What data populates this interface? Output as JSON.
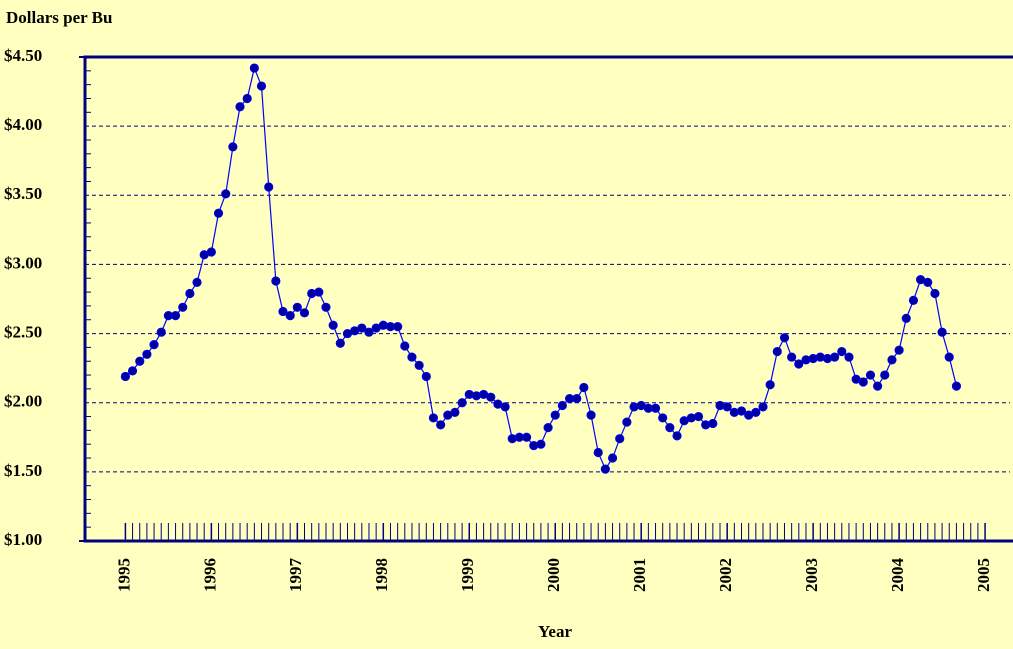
{
  "chart_data": {
    "type": "line",
    "y_axis_title": "Dollars per Bu",
    "x_axis_title": "Year",
    "xlim": [
      1994.53,
      2005.29
    ],
    "xticks": [
      1995,
      1996,
      1997,
      1998,
      1999,
      2000,
      2001,
      2002,
      2003,
      2004,
      2005
    ],
    "ylim": [
      1.0,
      4.5
    ],
    "yticks": [
      {
        "value": 1.0,
        "label": "$1.00"
      },
      {
        "value": 1.5,
        "label": "$1.50"
      },
      {
        "value": 2.0,
        "label": "$2.00"
      },
      {
        "value": 2.5,
        "label": "$2.50"
      },
      {
        "value": 3.0,
        "label": "$3.00"
      },
      {
        "value": 3.5,
        "label": "$3.50"
      },
      {
        "value": 4.0,
        "label": "$4.00"
      },
      {
        "value": 4.5,
        "label": "$4.50"
      }
    ],
    "grid": true,
    "x": [
      1995.0,
      1995.083,
      1995.167,
      1995.25,
      1995.333,
      1995.417,
      1995.5,
      1995.583,
      1995.667,
      1995.75,
      1995.833,
      1995.917,
      1996.0,
      1996.083,
      1996.167,
      1996.25,
      1996.333,
      1996.417,
      1996.5,
      1996.583,
      1996.667,
      1996.75,
      1996.833,
      1996.917,
      1997.0,
      1997.083,
      1997.167,
      1997.25,
      1997.333,
      1997.417,
      1997.5,
      1997.583,
      1997.667,
      1997.75,
      1997.833,
      1997.917,
      1998.0,
      1998.083,
      1998.167,
      1998.25,
      1998.333,
      1998.417,
      1998.5,
      1998.583,
      1998.667,
      1998.75,
      1998.833,
      1998.917,
      1999.0,
      1999.083,
      1999.167,
      1999.25,
      1999.333,
      1999.417,
      1999.5,
      1999.583,
      1999.667,
      1999.75,
      1999.833,
      1999.917,
      2000.0,
      2000.083,
      2000.167,
      2000.25,
      2000.333,
      2000.417,
      2000.5,
      2000.583,
      2000.667,
      2000.75,
      2000.833,
      2000.917,
      2001.0,
      2001.083,
      2001.167,
      2001.25,
      2001.333,
      2001.417,
      2001.5,
      2001.583,
      2001.667,
      2001.75,
      2001.833,
      2001.917,
      2002.0,
      2002.083,
      2002.167,
      2002.25,
      2002.333,
      2002.417,
      2002.5,
      2002.583,
      2002.667,
      2002.75,
      2002.833,
      2002.917,
      2003.0,
      2003.083,
      2003.167,
      2003.25,
      2003.333,
      2003.417,
      2003.5,
      2003.583,
      2003.667,
      2003.75,
      2003.833,
      2003.917,
      2004.0,
      2004.083,
      2004.167,
      2004.25,
      2004.333,
      2004.417,
      2004.5,
      2004.583,
      2004.667
    ],
    "series": [
      {
        "color": "#0000ff",
        "marker_color": "#0000a0",
        "values": [
          2.19,
          2.23,
          2.3,
          2.35,
          2.42,
          2.51,
          2.63,
          2.63,
          2.69,
          2.79,
          2.87,
          3.07,
          3.09,
          3.37,
          3.51,
          3.85,
          4.14,
          4.2,
          4.42,
          4.29,
          3.56,
          2.88,
          2.66,
          2.63,
          2.69,
          2.65,
          2.79,
          2.8,
          2.69,
          2.56,
          2.43,
          2.5,
          2.52,
          2.54,
          2.51,
          2.54,
          2.56,
          2.55,
          2.55,
          2.41,
          2.33,
          2.27,
          2.19,
          1.89,
          1.84,
          1.91,
          1.93,
          2.0,
          2.06,
          2.05,
          2.06,
          2.04,
          1.99,
          1.97,
          1.74,
          1.75,
          1.75,
          1.69,
          1.7,
          1.82,
          1.91,
          1.98,
          2.03,
          2.03,
          2.11,
          1.91,
          1.64,
          1.52,
          1.6,
          1.74,
          1.86,
          1.97,
          1.98,
          1.96,
          1.96,
          1.89,
          1.82,
          1.76,
          1.87,
          1.89,
          1.9,
          1.84,
          1.85,
          1.98,
          1.97,
          1.93,
          1.94,
          1.91,
          1.93,
          1.97,
          2.13,
          2.37,
          2.47,
          2.33,
          2.28,
          2.31,
          2.32,
          2.33,
          2.32,
          2.33,
          2.37,
          2.33,
          2.17,
          2.15,
          2.2,
          2.12,
          2.2,
          2.31,
          2.38,
          2.61,
          2.74,
          2.89,
          2.87,
          2.79,
          2.51,
          2.33,
          2.12
        ]
      }
    ]
  }
}
